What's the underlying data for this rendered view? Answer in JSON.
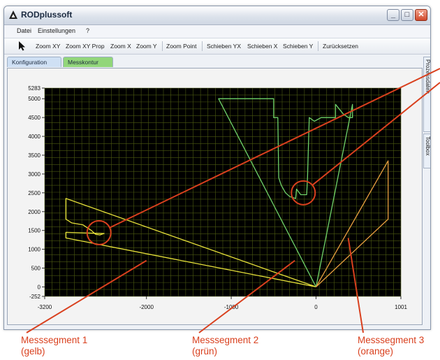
{
  "window": {
    "title": "RODplussoft",
    "min_label": "_",
    "max_label": "□",
    "close_label": "✕"
  },
  "menu": [
    "Datei",
    "Einstellungen",
    "?"
  ],
  "toolbar": {
    "buttons": [
      "Zoom XY",
      "Zoom XY Prop",
      "Zoom X",
      "Zoom Y",
      "Zoom Point",
      "Schieben YX",
      "Schieben X",
      "Schieben Y",
      "Zurücksetzen"
    ]
  },
  "tabs": [
    "Konfiguration",
    "Messkontur"
  ],
  "side_tabs": [
    "Prozessdaten",
    "Toolbox"
  ],
  "captions": [
    {
      "line1": "Messsegment 1",
      "line2": "(gelb)"
    },
    {
      "line1": "Messsegment 2",
      "line2": "(grün)"
    },
    {
      "line1": "Messsegment 3",
      "line2": "(orange)"
    }
  ],
  "colors": {
    "plot_bg": "#000000",
    "grid": "#4c5a12",
    "yellow": "#e6e03a",
    "green": "#6fd36a",
    "orange": "#e9a040",
    "callout": "#d9401e"
  },
  "chart_data": {
    "type": "line",
    "xlim": [
      -3200,
      1001
    ],
    "ylim": [
      -252,
      5283
    ],
    "x_tick_labels": [
      "-3200",
      "-2000",
      "-1000",
      "0",
      "1001"
    ],
    "y_tick_labels": [
      "5283",
      "5000",
      "4500",
      "4000",
      "3500",
      "3000",
      "2500",
      "2000",
      "1500",
      "1000",
      "500",
      "0",
      "-252"
    ],
    "grid": true,
    "series": [
      {
        "color": "yellow",
        "points": [
          [
            0,
            0
          ],
          [
            -2950,
            2350
          ],
          [
            -2950,
            1800
          ],
          [
            -2880,
            1700
          ],
          [
            -2750,
            1650
          ],
          [
            -2650,
            1500
          ],
          [
            -2600,
            1400
          ],
          [
            -2550,
            1380
          ],
          [
            -2500,
            1420
          ],
          [
            -2950,
            1450
          ],
          [
            -2950,
            1300
          ],
          [
            0,
            0
          ]
        ]
      },
      {
        "color": "green",
        "points": [
          [
            0,
            0
          ],
          [
            -1150,
            5000
          ],
          [
            -500,
            5000
          ],
          [
            -500,
            4500
          ],
          [
            -450,
            4500
          ],
          [
            -440,
            2900
          ],
          [
            -410,
            2700
          ],
          [
            -360,
            2500
          ],
          [
            -310,
            2400
          ],
          [
            -240,
            2350
          ],
          [
            -230,
            2600
          ],
          [
            -180,
            2450
          ],
          [
            -110,
            2450
          ],
          [
            -100,
            2900
          ],
          [
            -80,
            4500
          ],
          [
            -20,
            4400
          ],
          [
            60,
            4500
          ],
          [
            230,
            4500
          ],
          [
            230,
            4850
          ],
          [
            320,
            4600
          ],
          [
            380,
            4500
          ],
          [
            430,
            4500
          ],
          [
            430,
            4850
          ],
          [
            0,
            0
          ]
        ]
      },
      {
        "color": "orange",
        "points": [
          [
            0,
            0
          ],
          [
            850,
            3350
          ],
          [
            850,
            1800
          ],
          [
            0,
            0
          ]
        ]
      }
    ]
  }
}
